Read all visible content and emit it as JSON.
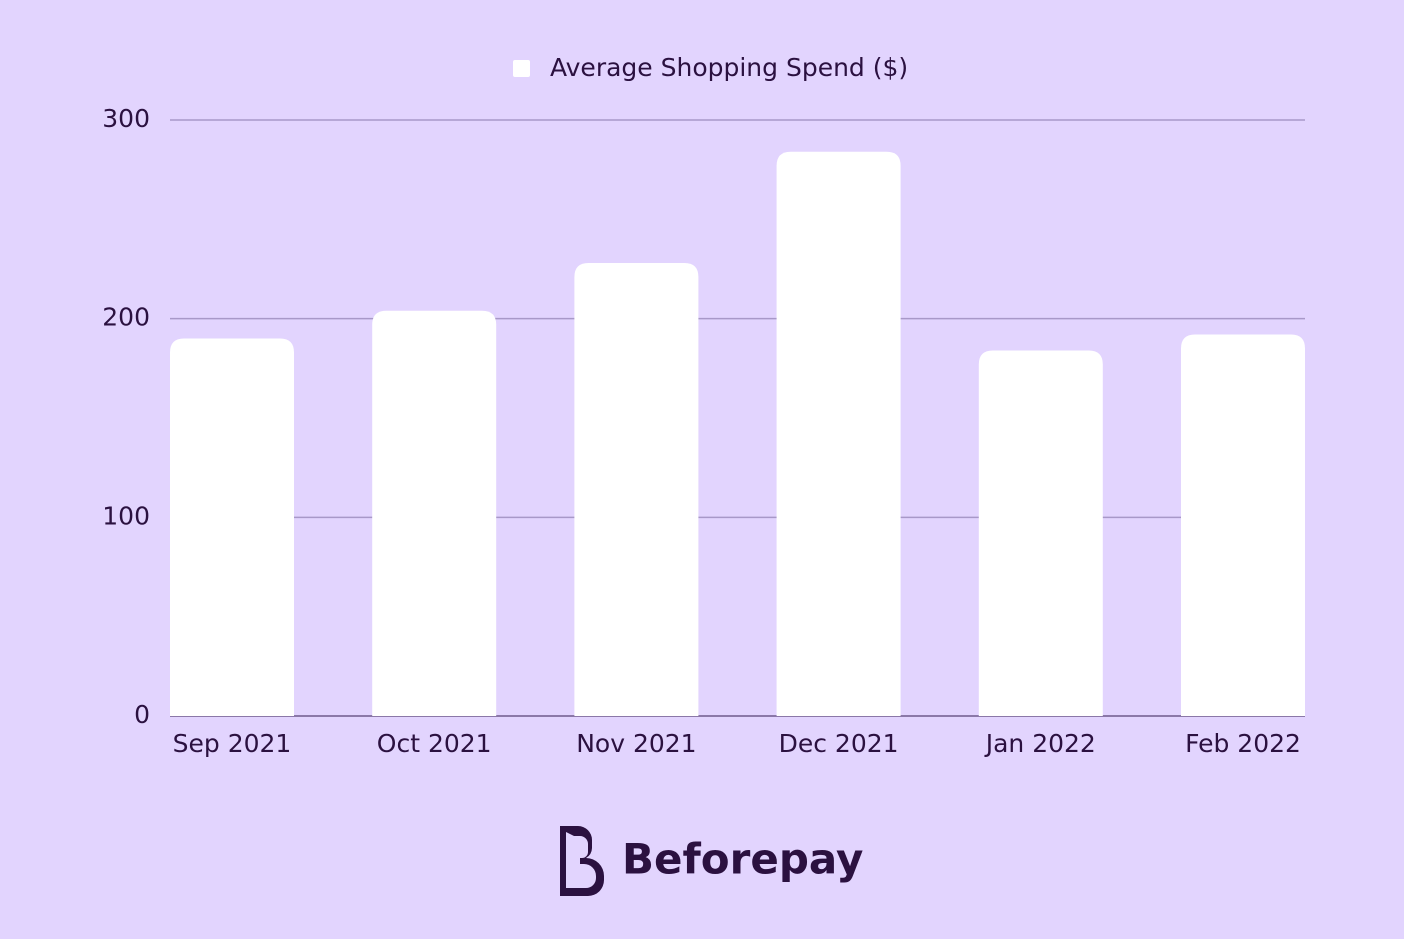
{
  "chart_data": {
    "type": "bar",
    "categories": [
      "Sep 2021",
      "Oct 2021",
      "Nov 2021",
      "Dec 2021",
      "Jan 2022",
      "Feb 2022"
    ],
    "series": [
      {
        "name": "Average Shopping Spend ($)",
        "color": "#ffffff",
        "values": [
          190,
          204,
          228,
          284,
          184,
          192
        ]
      }
    ],
    "ylim": [
      0,
      300
    ],
    "yticks": [
      0,
      100,
      200,
      300
    ],
    "grid": true,
    "legend": "top"
  },
  "footer": {
    "brand": "Beforepay"
  }
}
